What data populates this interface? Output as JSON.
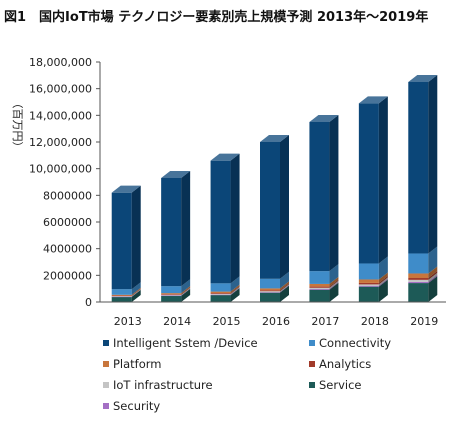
{
  "title": "図1　国内IoT市場 テクノロジー要素別売上規模予測 2013年～2019年",
  "chart_data": {
    "type": "bar",
    "stacked": true,
    "style": "3d",
    "title": "図1　国内IoT市場 テクノロジー要素別売上規模予測 2013年～2019年",
    "ylabel": "（百万円）",
    "xlabel": "",
    "ylim": [
      0,
      18000000
    ],
    "yticks": [
      0,
      2000000,
      4000000,
      6000000,
      8000000,
      10000000,
      12000000,
      14000000,
      16000000,
      18000000
    ],
    "ytick_labels": [
      "0",
      "2000000",
      "4000000",
      "6000000",
      "8000000",
      "10,000,000",
      "12,000,000",
      "14,000,000",
      "16,000,000",
      "18,000,000"
    ],
    "categories": [
      "2013",
      "2014",
      "2015",
      "2016",
      "2017",
      "2018",
      "2019"
    ],
    "legend_position": "bottom",
    "series": [
      {
        "name": "Service",
        "color": "#1d5a57",
        "values": [
          380000,
          460000,
          520000,
          700000,
          920000,
          1150000,
          1420000
        ]
      },
      {
        "name": "Security",
        "color": "#a46fc4",
        "values": [
          20000,
          25000,
          30000,
          40000,
          55000,
          70000,
          90000
        ]
      },
      {
        "name": "IoT infrastructure",
        "color": "#c4c4c4",
        "values": [
          40000,
          50000,
          60000,
          70000,
          90000,
          100000,
          150000
        ]
      },
      {
        "name": "Analytics",
        "color": "#a13a2a",
        "values": [
          40000,
          50000,
          60000,
          70000,
          90000,
          110000,
          140000
        ]
      },
      {
        "name": "Platform",
        "color": "#c8763c",
        "values": [
          60000,
          80000,
          110000,
          140000,
          200000,
          260000,
          340000
        ]
      },
      {
        "name": "Connectivity",
        "color": "#3f8cc9",
        "values": [
          420000,
          520000,
          620000,
          720000,
          960000,
          1200000,
          1500000
        ]
      },
      {
        "name": "Intelligent Sstem /Device",
        "color": "#0b4678",
        "values": [
          7240000,
          8115000,
          9200000,
          10260000,
          11185000,
          12010000,
          12860000
        ]
      }
    ]
  },
  "legend": [
    {
      "label": "Intelligent Sstem /Device",
      "color": "#0b4678"
    },
    {
      "label": "Connectivity",
      "color": "#3f8cc9"
    },
    {
      "label": "Platform",
      "color": "#c8763c"
    },
    {
      "label": "Analytics",
      "color": "#a13a2a"
    },
    {
      "label": "IoT infrastructure",
      "color": "#c4c4c4"
    },
    {
      "label": "Service",
      "color": "#1d5a57"
    },
    {
      "label": "Security",
      "color": "#a46fc4"
    }
  ]
}
